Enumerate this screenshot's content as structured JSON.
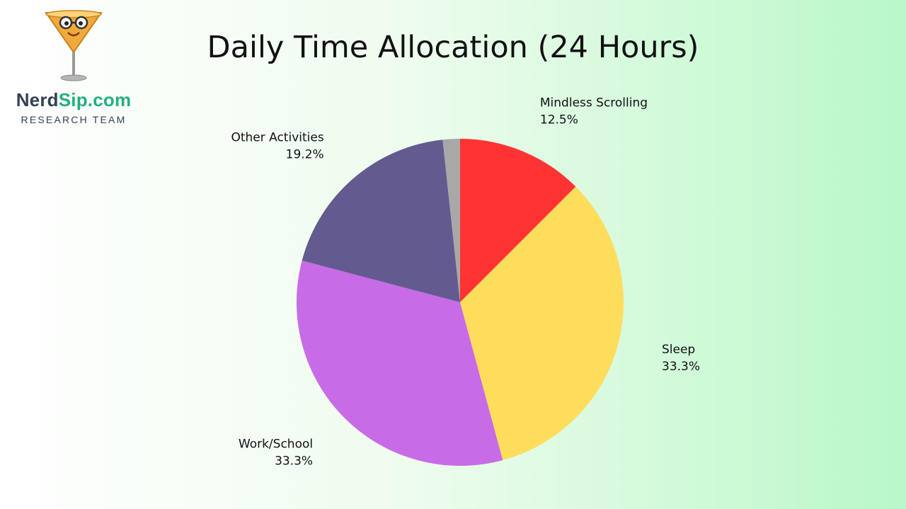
{
  "brand": {
    "name_part1": "Nerd",
    "name_part2": "Sip.com",
    "tagline": "RESEARCH TEAM"
  },
  "chart_data": {
    "type": "pie",
    "title": "Daily Time Allocation (24 Hours)",
    "start_angle_deg": 0,
    "direction": "clockwise",
    "slices": [
      {
        "label": "Mindless Scrolling",
        "percent_text": "12.5%",
        "value": 12.5,
        "color": "#ff3333"
      },
      {
        "label": "Sleep",
        "percent_text": "33.3%",
        "value": 33.3,
        "color": "#ffdd5c"
      },
      {
        "label": "Work/School",
        "percent_text": "33.3%",
        "value": 33.3,
        "color": "#c86be6"
      },
      {
        "label": "Other Activities",
        "percent_text": "19.2%",
        "value": 19.2,
        "color": "#635a8f"
      },
      {
        "label": "",
        "percent_text": "",
        "value": 1.7,
        "color": "#a8a8a8"
      }
    ]
  }
}
